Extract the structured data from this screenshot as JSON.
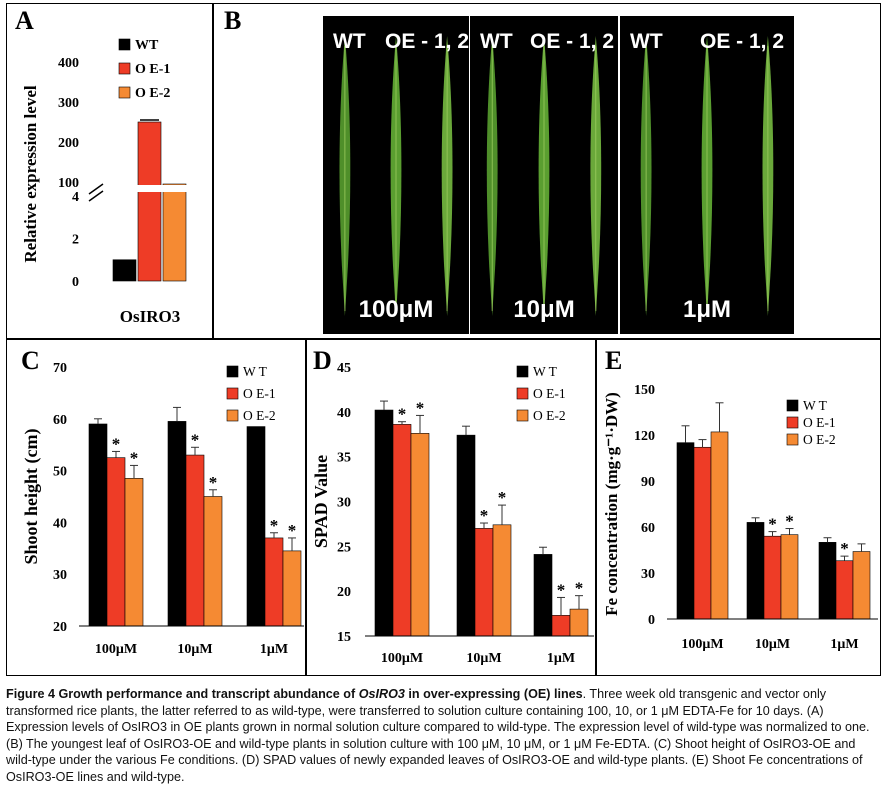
{
  "panels": {
    "a_label": "A",
    "b_label": "B",
    "c_label": "C",
    "d_label": "D",
    "e_label": "E"
  },
  "photos": [
    {
      "wt": "WT",
      "oe": "OE - 1, 2",
      "conc": "100μM"
    },
    {
      "wt": "WT",
      "oe": "OE - 1, 2",
      "conc": "10μM"
    },
    {
      "wt": "WT",
      "oe": "OE - 1, 2",
      "conc": "1μM"
    }
  ],
  "colors": {
    "WT": "#000000",
    "OE-1": "#ee3c26",
    "OE-2": "#f58a33"
  },
  "chart_data": [
    {
      "panel": "A",
      "type": "bar",
      "ylabel": "Relative expression level",
      "categories": [
        "OsIRO3"
      ],
      "series": [
        {
          "name": "WT",
          "values": [
            1
          ]
        },
        {
          "name": "O E-1",
          "values": [
            250
          ]
        },
        {
          "name": "O E-2",
          "values": [
            95
          ]
        }
      ],
      "broken_axis": true,
      "yticks_lower": [
        "0",
        "2",
        "4"
      ],
      "yticks_upper": [
        "100",
        "200",
        "300",
        "400"
      ],
      "legend": [
        "WT",
        "O E-1",
        "O E-2"
      ]
    },
    {
      "panel": "C",
      "type": "bar",
      "ylabel": "Shoot height (cm)",
      "categories": [
        "100μM",
        "10μM",
        "1μM"
      ],
      "ylim": [
        20,
        70
      ],
      "yticks": [
        "20",
        "30",
        "40",
        "50",
        "60",
        "70"
      ],
      "legend": [
        "W T",
        "O E-1",
        "O E-2"
      ],
      "series": [
        {
          "name": "W T",
          "values": [
            59,
            59.5,
            58.5
          ],
          "err": [
            1,
            2.7,
            0
          ],
          "sig": [
            "",
            "",
            ""
          ]
        },
        {
          "name": "O E-1",
          "values": [
            52.5,
            53,
            37
          ],
          "err": [
            1.2,
            1.5,
            1.0
          ],
          "sig": [
            "*",
            "*",
            "*"
          ]
        },
        {
          "name": "O E-2",
          "values": [
            48.5,
            45,
            34.5
          ],
          "err": [
            2.5,
            1.3,
            2.5
          ],
          "sig": [
            "*",
            "*",
            "*"
          ]
        }
      ]
    },
    {
      "panel": "D",
      "type": "bar",
      "ylabel": "SPAD Value",
      "categories": [
        "100μM",
        "10μM",
        "1μM"
      ],
      "ylim": [
        15,
        45
      ],
      "yticks": [
        "15",
        "20",
        "25",
        "30",
        "35",
        "40",
        "45"
      ],
      "legend": [
        "W T",
        "O E-1",
        "O E-2"
      ],
      "series": [
        {
          "name": "W T",
          "values": [
            40.2,
            37.4,
            24.1
          ],
          "err": [
            1.0,
            1.0,
            0.8
          ],
          "sig": [
            "",
            "",
            ""
          ]
        },
        {
          "name": "O E-1",
          "values": [
            38.6,
            27.0,
            17.3
          ],
          "err": [
            0.3,
            0.6,
            2.0
          ],
          "sig": [
            "*",
            "*",
            "*"
          ]
        },
        {
          "name": "O E-2",
          "values": [
            37.6,
            27.4,
            18.0
          ],
          "err": [
            2.0,
            2.2,
            1.5
          ],
          "sig": [
            "*",
            "*",
            "*"
          ]
        }
      ]
    },
    {
      "panel": "E",
      "type": "bar",
      "ylabel": "Fe concentration (mg·g⁻¹·DW)",
      "categories": [
        "100μM",
        "10μM",
        "1μM"
      ],
      "ylim": [
        0,
        150
      ],
      "yticks": [
        "0",
        "30",
        "60",
        "90",
        "120",
        "150"
      ],
      "legend": [
        "W T",
        "O E-1",
        "O E-2"
      ],
      "series": [
        {
          "name": "W T",
          "values": [
            115,
            63,
            50
          ],
          "err": [
            11,
            3,
            3
          ],
          "sig": [
            "",
            "",
            ""
          ]
        },
        {
          "name": "O E-1",
          "values": [
            112,
            54,
            38
          ],
          "err": [
            5,
            3,
            3
          ],
          "sig": [
            "",
            "*",
            "*"
          ]
        },
        {
          "name": "O E-2",
          "values": [
            122,
            55,
            44
          ],
          "err": [
            19,
            4,
            5
          ],
          "sig": [
            "",
            "*",
            ""
          ]
        }
      ]
    }
  ],
  "caption": {
    "title_pre": "Figure 4 Growth performance and transcript abundance of ",
    "title_gene": "OsIRO3",
    "title_post": " in over-expressing (OE) lines",
    "body": ". Three week old transgenic and vector only transformed rice plants, the latter referred to as wild-type, were transferred to solution culture containing 100, 10, or 1 μM EDTA-Fe for 10 days. (A) Expression levels of OsIRO3 in OE plants grown in normal solution culture compared to wild-type. The expression level of wild-type was normalized to one. (B) The youngest leaf of OsIRO3-OE and wild-type plants in solution culture with 100 μM, 10 μM, or 1 μM Fe-EDTA. (C) Shoot height of OsIRO3-OE and wild-type under the various Fe conditions. (D) SPAD values of newly expanded leaves of OsIRO3-OE and wild-type plants. (E) Shoot Fe concentrations of OsIRO3-OE lines and wild-type."
  }
}
